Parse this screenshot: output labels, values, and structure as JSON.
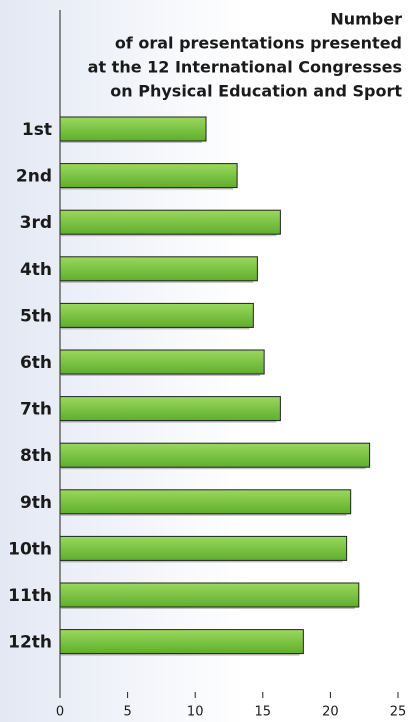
{
  "chart_data": {
    "type": "bar",
    "orientation": "horizontal",
    "title": [
      "Number",
      "of oral presentations presented",
      "at the 12 International Congresses",
      "on Physical Education and Sport"
    ],
    "categories": [
      "1st",
      "2nd",
      "3rd",
      "4th",
      "5th",
      "6th",
      "7th",
      "8th",
      "9th",
      "10th",
      "11th",
      "12th"
    ],
    "values": [
      10.8,
      13.1,
      16.3,
      14.6,
      14.3,
      15.1,
      16.3,
      22.9,
      21.5,
      21.2,
      22.1,
      18.0
    ],
    "color": "#7dc242",
    "xlim": [
      0,
      25
    ],
    "xticks": [
      0,
      5,
      10,
      15,
      20,
      25
    ]
  }
}
